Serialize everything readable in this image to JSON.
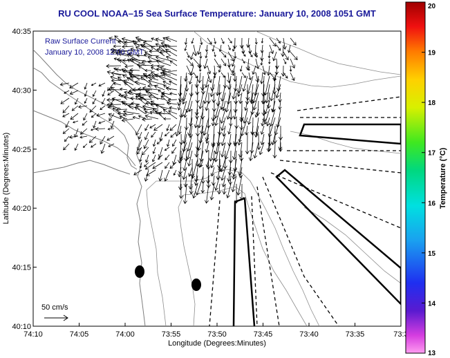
{
  "chart_data": {
    "type": "vector-field",
    "title": "RU COOL  NOAA–15  Sea Surface Temperature:  January 10, 2008 1051 GMT",
    "xlabel": "Longitude (Degrees:Minutes)",
    "ylabel": "Latitude (Degrees:Minutes)",
    "xlim": [
      -74.1667,
      -73.5
    ],
    "ylim": [
      40.1667,
      40.5833
    ],
    "x_ticks": [
      "74:10",
      "74:05",
      "74:00",
      "73:55",
      "73:50",
      "73:45",
      "73:40",
      "73:35",
      "73:3"
    ],
    "y_ticks": [
      "40:10",
      "40:15",
      "40:20",
      "40:25",
      "40:30",
      "40:35"
    ],
    "overlay_label": "Raw Surface Current",
    "overlay_time": "January 10, 2008 12:00 GMT",
    "scale_label": "50 cm/s",
    "colorbar": {
      "label": "Temperature (°C)",
      "min": 13,
      "max": 20,
      "ticks": [
        "13",
        "14",
        "15",
        "16",
        "17",
        "18",
        "19",
        "20"
      ]
    },
    "colors": {
      "title": "#1a1a9a",
      "coast": "#808080",
      "arrows": "#000000"
    }
  }
}
